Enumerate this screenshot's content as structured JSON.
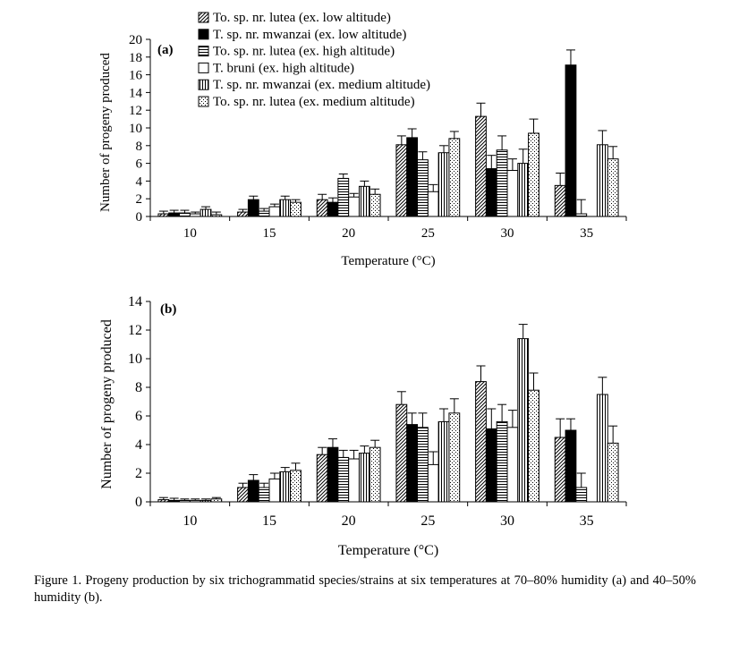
{
  "chart_data": [
    {
      "type": "bar",
      "panel_label": "(a)",
      "categories": [
        "10",
        "15",
        "20",
        "25",
        "30",
        "35"
      ],
      "xlabel": "Temperature (°C)",
      "ylabel": "Number of progeny produced",
      "ylim": [
        0,
        20
      ],
      "yticks": [
        0,
        2,
        4,
        6,
        8,
        10,
        12,
        14,
        16,
        18,
        20
      ],
      "legend_position": "top-left",
      "series": [
        {
          "name": "To. sp. nr. lutea (ex. low altitude)",
          "pattern": "diagonal",
          "values": [
            0.3,
            0.5,
            1.9,
            8.1,
            11.3,
            3.5
          ],
          "errors": [
            0.3,
            0.3,
            0.6,
            1.0,
            1.5,
            1.4
          ]
        },
        {
          "name": "T. sp. nr. mwanzai (ex. low altitude)",
          "pattern": "solid",
          "values": [
            0.4,
            1.9,
            1.6,
            8.9,
            5.4,
            17.1
          ],
          "errors": [
            0.3,
            0.4,
            0.5,
            1.0,
            1.5,
            1.7
          ]
        },
        {
          "name": "To. sp. nr. lutea (ex. high altitude)",
          "pattern": "horizontal",
          "values": [
            0.4,
            0.6,
            4.3,
            6.4,
            7.5,
            0.3
          ],
          "errors": [
            0.3,
            0.3,
            0.5,
            0.9,
            1.6,
            1.6
          ]
        },
        {
          "name": "T. bruni (ex. high altitude)",
          "pattern": "open",
          "values": [
            0.3,
            1.1,
            2.2,
            2.8,
            5.2,
            0.0
          ],
          "errors": [
            0.2,
            0.3,
            0.4,
            0.8,
            1.3,
            0.0
          ]
        },
        {
          "name": "T. sp. nr. mwanzai (ex. medium altitude)",
          "pattern": "vertical",
          "values": [
            0.8,
            1.9,
            3.4,
            7.2,
            6.0,
            8.1
          ],
          "errors": [
            0.3,
            0.4,
            0.6,
            0.8,
            1.6,
            1.6
          ]
        },
        {
          "name": "To. sp. nr. lutea (ex. medium altitude)",
          "pattern": "dotted",
          "values": [
            0.2,
            1.6,
            2.5,
            8.8,
            9.4,
            6.5
          ],
          "errors": [
            0.3,
            0.3,
            0.6,
            0.8,
            1.6,
            1.4
          ]
        }
      ]
    },
    {
      "type": "bar",
      "panel_label": "(b)",
      "categories": [
        "10",
        "15",
        "20",
        "25",
        "30",
        "35"
      ],
      "xlabel": "Temperature (°C)",
      "ylabel": "Number of progeny produced",
      "ylim": [
        0,
        14
      ],
      "yticks": [
        0,
        2,
        4,
        6,
        8,
        10,
        12,
        14
      ],
      "series": [
        {
          "name": "To. sp. nr. lutea (ex. low altitude)",
          "pattern": "diagonal",
          "values": [
            0.15,
            1.0,
            3.3,
            6.8,
            8.4,
            4.5
          ],
          "errors": [
            0.15,
            0.3,
            0.5,
            0.9,
            1.1,
            1.3
          ]
        },
        {
          "name": "T. sp. nr. mwanzai (ex. low altitude)",
          "pattern": "solid",
          "values": [
            0.1,
            1.5,
            3.8,
            5.4,
            5.1,
            5.0
          ],
          "errors": [
            0.15,
            0.4,
            0.6,
            0.8,
            1.4,
            0.8
          ]
        },
        {
          "name": "To. sp. nr. lutea (ex. high altitude)",
          "pattern": "horizontal",
          "values": [
            0.1,
            1.0,
            3.1,
            5.2,
            5.6,
            1.0
          ],
          "errors": [
            0.1,
            0.3,
            0.5,
            1.0,
            1.2,
            1.0
          ]
        },
        {
          "name": "T. bruni (ex. high altitude)",
          "pattern": "open",
          "values": [
            0.1,
            1.6,
            3.0,
            2.6,
            5.2,
            0.0
          ],
          "errors": [
            0.1,
            0.4,
            0.6,
            0.9,
            1.2,
            0.0
          ]
        },
        {
          "name": "T. sp. nr. mwanzai (ex. medium altitude)",
          "pattern": "vertical",
          "values": [
            0.1,
            2.1,
            3.4,
            5.6,
            11.4,
            7.5
          ],
          "errors": [
            0.1,
            0.3,
            0.5,
            0.9,
            1.0,
            1.2
          ]
        },
        {
          "name": "To. sp. nr. lutea (ex. medium altitude)",
          "pattern": "dotted",
          "values": [
            0.2,
            2.2,
            3.8,
            6.2,
            7.8,
            4.1
          ],
          "errors": [
            0.1,
            0.5,
            0.5,
            1.0,
            1.2,
            1.2
          ]
        }
      ]
    }
  ],
  "caption": "Figure 1. Progeny production by six trichogrammatid species/strains at six temperatures at 70–80% humidity (a) and 40–50% humidity (b)."
}
